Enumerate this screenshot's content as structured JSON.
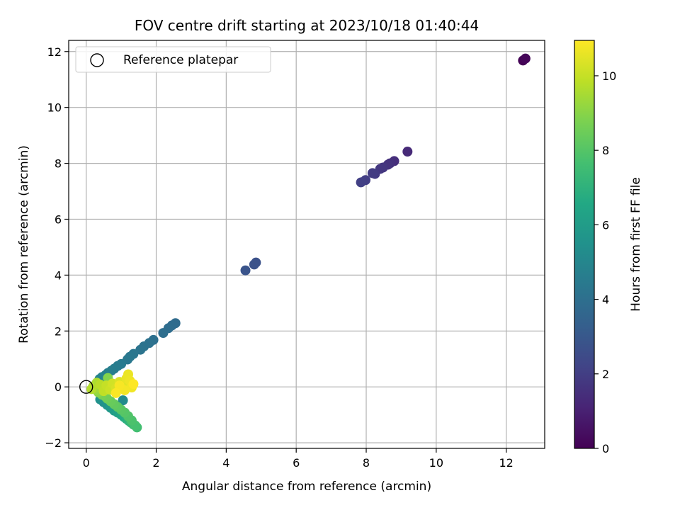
{
  "chart_data": {
    "type": "scatter",
    "title": "FOV centre drift starting at 2023/10/18 01:40:44",
    "xlabel": "Angular distance from reference (arcmin)",
    "ylabel": "Rotation from reference (arcmin)",
    "xlim": [
      -0.5,
      13.1
    ],
    "ylim": [
      -2.2,
      12.4
    ],
    "xticks": [
      0,
      2,
      4,
      6,
      8,
      10,
      12
    ],
    "yticks": [
      -2,
      0,
      2,
      4,
      6,
      8,
      10,
      12
    ],
    "grid": true,
    "legend": {
      "placement": "top-left",
      "entries": [
        {
          "label": "Reference platepar",
          "marker": "open-circle"
        }
      ]
    },
    "reference_point": {
      "x": 0,
      "y": 0
    },
    "colorbar": {
      "label": "Hours from first FF file",
      "range": [
        0,
        10.95
      ],
      "ticks": [
        0,
        2,
        4,
        6,
        8,
        10
      ],
      "colormap": "viridis"
    },
    "series": [
      {
        "points": [
          {
            "x": 12.48,
            "y": 11.68,
            "h": 0.05
          },
          {
            "x": 12.55,
            "y": 11.75,
            "h": 0.15
          },
          {
            "x": 9.18,
            "y": 8.42,
            "h": 1.3
          },
          {
            "x": 8.8,
            "y": 8.08,
            "h": 1.45
          },
          {
            "x": 8.68,
            "y": 8.0,
            "h": 1.55
          },
          {
            "x": 8.62,
            "y": 7.95,
            "h": 1.6
          },
          {
            "x": 8.48,
            "y": 7.85,
            "h": 1.7
          },
          {
            "x": 8.4,
            "y": 7.8,
            "h": 1.75
          },
          {
            "x": 8.25,
            "y": 7.62,
            "h": 1.85
          },
          {
            "x": 8.18,
            "y": 7.65,
            "h": 1.9
          },
          {
            "x": 7.98,
            "y": 7.4,
            "h": 2.0
          },
          {
            "x": 7.85,
            "y": 7.32,
            "h": 2.05
          },
          {
            "x": 4.85,
            "y": 4.45,
            "h": 2.7
          },
          {
            "x": 4.8,
            "y": 4.38,
            "h": 2.75
          },
          {
            "x": 4.55,
            "y": 4.17,
            "h": 2.85
          },
          {
            "x": 2.55,
            "y": 2.28,
            "h": 3.8
          },
          {
            "x": 2.45,
            "y": 2.2,
            "h": 3.85
          },
          {
            "x": 2.35,
            "y": 2.1,
            "h": 3.9
          },
          {
            "x": 2.2,
            "y": 1.93,
            "h": 3.95
          },
          {
            "x": 1.92,
            "y": 1.68,
            "h": 4.05
          },
          {
            "x": 1.8,
            "y": 1.57,
            "h": 4.1
          },
          {
            "x": 1.65,
            "y": 1.45,
            "h": 4.15
          },
          {
            "x": 1.55,
            "y": 1.33,
            "h": 4.2
          },
          {
            "x": 1.35,
            "y": 1.18,
            "h": 4.3
          },
          {
            "x": 1.25,
            "y": 1.08,
            "h": 4.35
          },
          {
            "x": 1.18,
            "y": 0.98,
            "h": 4.4
          },
          {
            "x": 1.0,
            "y": 0.82,
            "h": 4.5
          },
          {
            "x": 0.9,
            "y": 0.75,
            "h": 4.55
          },
          {
            "x": 0.8,
            "y": 0.65,
            "h": 4.6
          },
          {
            "x": 0.72,
            "y": 0.58,
            "h": 4.65
          },
          {
            "x": 0.62,
            "y": 0.5,
            "h": 4.7
          },
          {
            "x": 0.55,
            "y": 0.42,
            "h": 4.75
          },
          {
            "x": 0.45,
            "y": 0.35,
            "h": 4.8
          },
          {
            "x": 0.38,
            "y": 0.28,
            "h": 4.85
          },
          {
            "x": 1.05,
            "y": -0.48,
            "h": 5.2
          },
          {
            "x": 0.5,
            "y": -0.55,
            "h": 5.4
          },
          {
            "x": 0.4,
            "y": -0.45,
            "h": 5.5
          },
          {
            "x": 0.6,
            "y": -0.65,
            "h": 5.6
          },
          {
            "x": 0.7,
            "y": -0.75,
            "h": 5.8
          },
          {
            "x": 0.8,
            "y": -0.85,
            "h": 6.0
          },
          {
            "x": 0.9,
            "y": -0.92,
            "h": 6.2
          },
          {
            "x": 1.0,
            "y": -1.0,
            "h": 6.4
          },
          {
            "x": 1.08,
            "y": -1.08,
            "h": 6.6
          },
          {
            "x": 1.15,
            "y": -1.15,
            "h": 6.8
          },
          {
            "x": 1.22,
            "y": -1.22,
            "h": 7.0
          },
          {
            "x": 1.28,
            "y": -1.28,
            "h": 7.2
          },
          {
            "x": 1.35,
            "y": -1.35,
            "h": 7.4
          },
          {
            "x": 1.45,
            "y": -1.45,
            "h": 7.6
          },
          {
            "x": 1.4,
            "y": -1.38,
            "h": 7.7
          },
          {
            "x": 1.3,
            "y": -1.2,
            "h": 7.8
          },
          {
            "x": 1.2,
            "y": -1.05,
            "h": 7.9
          },
          {
            "x": 1.1,
            "y": -0.92,
            "h": 8.0
          },
          {
            "x": 1.0,
            "y": -0.82,
            "h": 8.1
          },
          {
            "x": 0.9,
            "y": -0.72,
            "h": 8.2
          },
          {
            "x": 0.8,
            "y": -0.62,
            "h": 8.3
          },
          {
            "x": 0.7,
            "y": -0.52,
            "h": 8.4
          },
          {
            "x": 0.6,
            "y": -0.42,
            "h": 8.5
          },
          {
            "x": 0.55,
            "y": -0.35,
            "h": 8.6
          },
          {
            "x": 0.45,
            "y": -0.28,
            "h": 8.7
          },
          {
            "x": 0.62,
            "y": 0.32,
            "h": 8.9
          },
          {
            "x": 0.35,
            "y": -0.2,
            "h": 9.0
          },
          {
            "x": 0.3,
            "y": -0.12,
            "h": 9.2
          },
          {
            "x": 0.25,
            "y": -0.05,
            "h": 9.4
          },
          {
            "x": 0.2,
            "y": 0.02,
            "h": 9.5
          },
          {
            "x": 0.3,
            "y": 0.15,
            "h": 9.6
          },
          {
            "x": 0.15,
            "y": -0.08,
            "h": 9.7
          },
          {
            "x": 0.4,
            "y": 0.08,
            "h": 9.8
          },
          {
            "x": 0.5,
            "y": -0.15,
            "h": 9.9
          },
          {
            "x": 0.58,
            "y": 0.05,
            "h": 10.0
          },
          {
            "x": 0.68,
            "y": -0.1,
            "h": 10.1
          },
          {
            "x": 0.75,
            "y": 0.12,
            "h": 10.2
          },
          {
            "x": 0.85,
            "y": -0.05,
            "h": 10.3
          },
          {
            "x": 0.95,
            "y": 0.18,
            "h": 10.4
          },
          {
            "x": 1.05,
            "y": 0.02,
            "h": 10.5
          },
          {
            "x": 1.15,
            "y": 0.3,
            "h": 10.6
          },
          {
            "x": 1.2,
            "y": 0.45,
            "h": 10.65
          },
          {
            "x": 1.25,
            "y": 0.22,
            "h": 10.7
          },
          {
            "x": 1.3,
            "y": -0.02,
            "h": 10.75
          },
          {
            "x": 1.1,
            "y": -0.12,
            "h": 10.8
          },
          {
            "x": 0.95,
            "y": 0.05,
            "h": 10.85
          },
          {
            "x": 0.85,
            "y": -0.22,
            "h": 10.9
          },
          {
            "x": 1.35,
            "y": 0.1,
            "h": 10.95
          }
        ]
      }
    ]
  }
}
